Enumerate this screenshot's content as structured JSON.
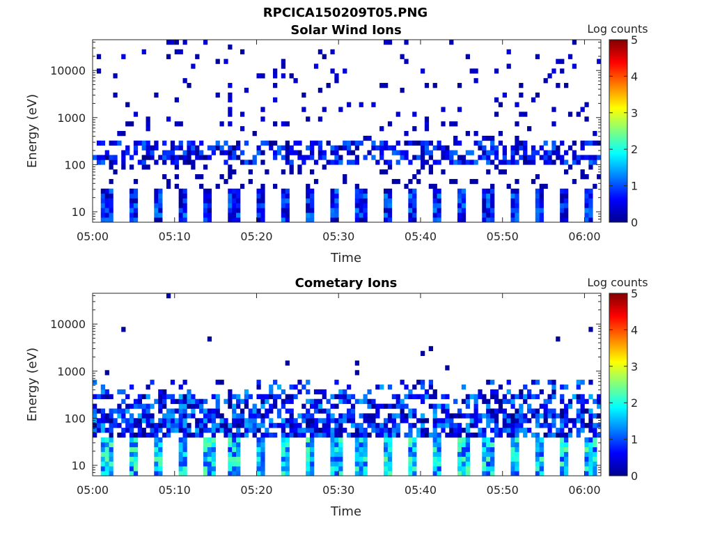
{
  "figure_title": "RPCICA150209T05.PNG",
  "chart_data": [
    {
      "type": "heatmap",
      "title": "Solar Wind Ions",
      "xlabel": "Time",
      "ylabel": "Energy (eV)",
      "x_ticks": [
        "05:00",
        "05:10",
        "05:20",
        "05:30",
        "05:40",
        "05:50",
        "06:00"
      ],
      "x_range": [
        "05:00",
        "06:02"
      ],
      "y_scale": "log",
      "y_ticks": [
        10,
        100,
        1000,
        10000
      ],
      "y_range": [
        6,
        45000
      ],
      "colorbar": {
        "label": "Log counts",
        "range": [
          0,
          5
        ],
        "ticks": [
          0,
          1,
          2,
          3,
          4,
          5
        ],
        "colormap": "jet"
      },
      "grid": false,
      "cycle_minutes": 3.1,
      "dominant_bands": [
        {
          "energy_eV": [
            6,
            30
          ],
          "log_counts": [
            0.2,
            1.3
          ],
          "description": "periodic low-energy blocks"
        },
        {
          "energy_eV": [
            90,
            320
          ],
          "log_counts": [
            0.1,
            1.2
          ],
          "description": "solar wind band"
        },
        {
          "energy_eV": [
            300,
            45000
          ],
          "log_counts": [
            0.1,
            0.6
          ],
          "description": "sparse background counts"
        }
      ]
    },
    {
      "type": "heatmap",
      "title": "Cometary Ions",
      "xlabel": "Time",
      "ylabel": "Energy (eV)",
      "x_ticks": [
        "05:00",
        "05:10",
        "05:20",
        "05:30",
        "05:40",
        "05:50",
        "06:00"
      ],
      "x_range": [
        "05:00",
        "06:02"
      ],
      "y_scale": "log",
      "y_ticks": [
        10,
        100,
        1000,
        10000
      ],
      "y_range": [
        6,
        45000
      ],
      "colorbar": {
        "label": "Log counts",
        "range": [
          0,
          5
        ],
        "ticks": [
          0,
          1,
          2,
          3,
          4,
          5
        ],
        "colormap": "jet"
      },
      "grid": false,
      "cycle_minutes": 3.1,
      "dominant_bands": [
        {
          "energy_eV": [
            6,
            40
          ],
          "log_counts": [
            0.8,
            2.4
          ],
          "description": "periodic low-energy cometary ions"
        },
        {
          "energy_eV": [
            30,
            600
          ],
          "log_counts": [
            0.1,
            1.5
          ],
          "description": "broad cometary band"
        },
        {
          "energy_eV": [
            1000,
            7000
          ],
          "log_counts": [
            0.1,
            0.3
          ],
          "description": "rare high-energy counts"
        }
      ]
    }
  ]
}
